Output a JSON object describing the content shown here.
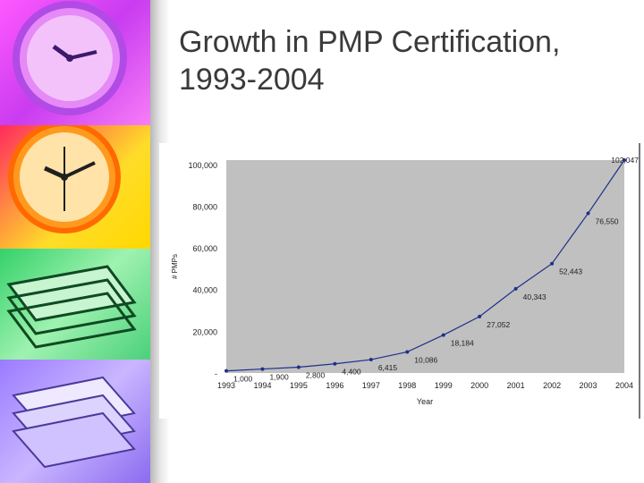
{
  "slide": {
    "title_line1": "Growth in PMP Certification,",
    "title_line2": "1993-2004"
  },
  "decor": {
    "icons": [
      "purple-clock-icon",
      "orange-clock-icon",
      "green-papers-icon",
      "purple-papers-icon"
    ],
    "colors": {
      "plot_bg": "#c0c0c0",
      "line": "#1f2f8a",
      "title": "#3a3a3a"
    }
  },
  "chart_data": {
    "type": "line",
    "title": "",
    "xlabel": "Year",
    "ylabel": "# PMPs",
    "categories": [
      "1993",
      "1994",
      "1995",
      "1996",
      "1997",
      "1998",
      "1999",
      "2000",
      "2001",
      "2002",
      "2003",
      "2004"
    ],
    "values": [
      1000,
      1900,
      2800,
      4400,
      6415,
      10086,
      18184,
      27052,
      40343,
      52443,
      76550,
      102047
    ],
    "data_labels": [
      "1,000",
      "1,900",
      "2,800",
      "4,400",
      "6,415",
      "10,086",
      "18,184",
      "27,052",
      "40,343",
      "52,443",
      "76,550",
      "102,047"
    ],
    "y_ticks": [
      0,
      20000,
      40000,
      60000,
      80000,
      100000
    ],
    "y_tick_labels": [
      "-",
      "20,000",
      "40,000",
      "60,000",
      "80,000",
      "100,000"
    ],
    "ylim": [
      0,
      102047
    ],
    "grid": false,
    "legend": "none"
  }
}
